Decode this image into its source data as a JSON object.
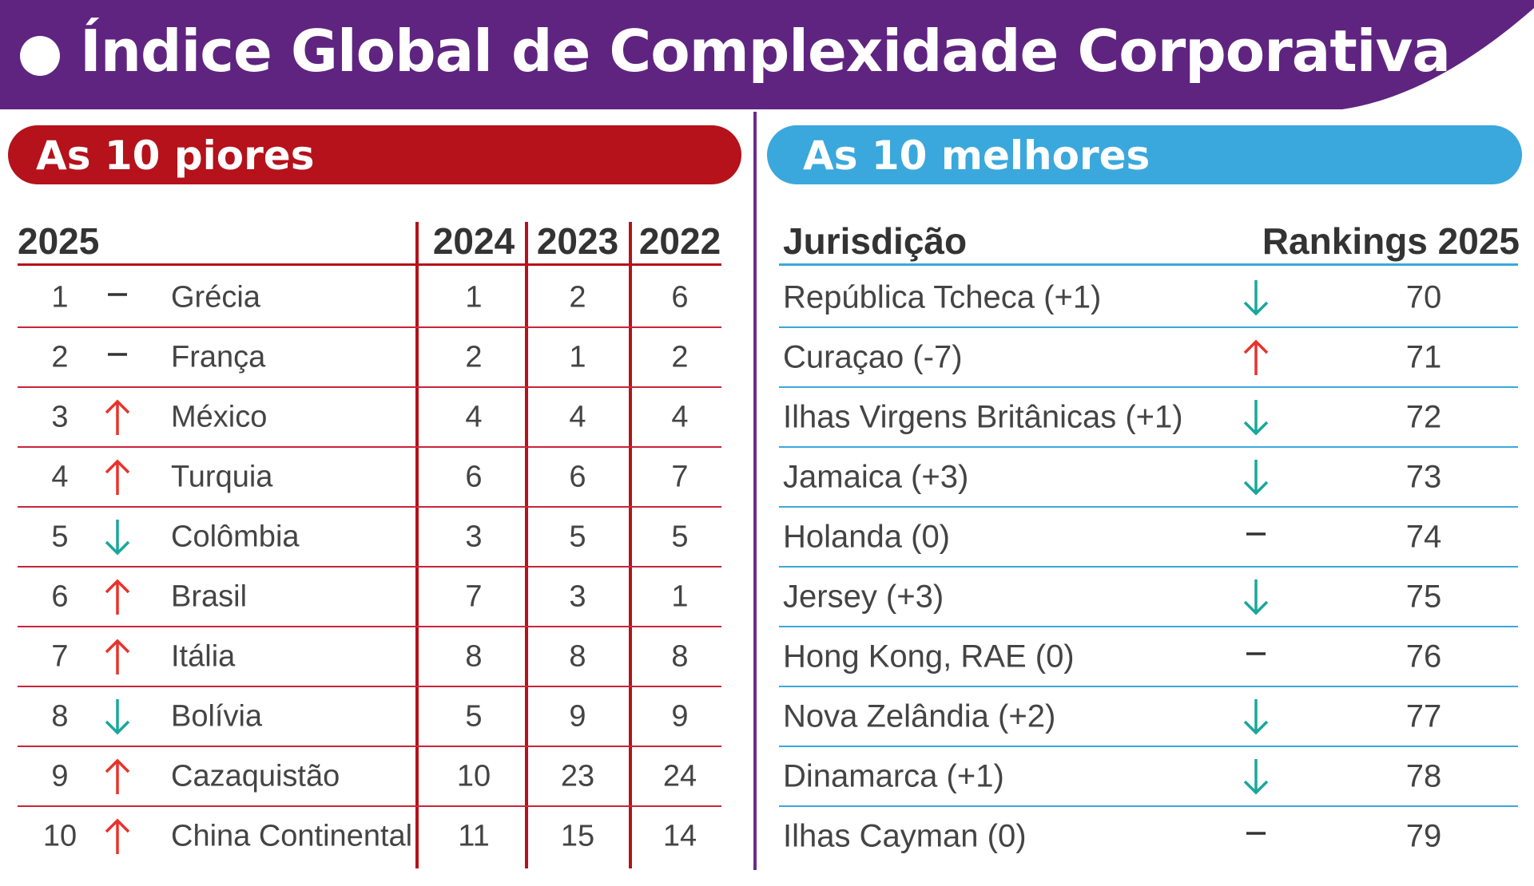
{
  "header": {
    "title": "Índice Global de Complexidade Corporativa"
  },
  "worst": {
    "title": "As 10 piores",
    "columns": [
      "2025",
      "2024",
      "2023",
      "2022"
    ],
    "rows": [
      {
        "rank": "1",
        "trend": "same",
        "country": "Grécia",
        "y2024": "1",
        "y2023": "2",
        "y2022": "6"
      },
      {
        "rank": "2",
        "trend": "same",
        "country": "França",
        "y2024": "2",
        "y2023": "1",
        "y2022": "2"
      },
      {
        "rank": "3",
        "trend": "up",
        "country": "México",
        "y2024": "4",
        "y2023": "4",
        "y2022": "4"
      },
      {
        "rank": "4",
        "trend": "up",
        "country": "Turquia",
        "y2024": "6",
        "y2023": "6",
        "y2022": "7"
      },
      {
        "rank": "5",
        "trend": "down",
        "country": "Colômbia",
        "y2024": "3",
        "y2023": "5",
        "y2022": "5"
      },
      {
        "rank": "6",
        "trend": "up",
        "country": "Brasil",
        "y2024": "7",
        "y2023": "3",
        "y2022": "1"
      },
      {
        "rank": "7",
        "trend": "up",
        "country": "Itália",
        "y2024": "8",
        "y2023": "8",
        "y2022": "8"
      },
      {
        "rank": "8",
        "trend": "down",
        "country": "Bolívia",
        "y2024": "5",
        "y2023": "9",
        "y2022": "9"
      },
      {
        "rank": "9",
        "trend": "up",
        "country": "Cazaquistão",
        "y2024": "10",
        "y2023": "23",
        "y2022": "24"
      },
      {
        "rank": "10",
        "trend": "up",
        "country": "China Continental",
        "y2024": "11",
        "y2023": "15",
        "y2022": "14"
      }
    ]
  },
  "best": {
    "title": "As 10 melhores",
    "columns": [
      "Jurisdição",
      "Rankings 2025"
    ],
    "rows": [
      {
        "name": "República Tcheca (+1)",
        "trend": "down",
        "rank": "70"
      },
      {
        "name": "Curaçao (-7)",
        "trend": "up",
        "rank": "71"
      },
      {
        "name": "Ilhas Virgens Britânicas (+1)",
        "trend": "down",
        "rank": "72"
      },
      {
        "name": "Jamaica (+3)",
        "trend": "down",
        "rank": "73"
      },
      {
        "name": "Holanda (0)",
        "trend": "same",
        "rank": "74"
      },
      {
        "name": "Jersey (+3)",
        "trend": "down",
        "rank": "75"
      },
      {
        "name": "Hong Kong, RAE (0)",
        "trend": "same",
        "rank": "76"
      },
      {
        "name": "Nova Zelândia (+2)",
        "trend": "down",
        "rank": "77"
      },
      {
        "name": "Dinamarca (+1)",
        "trend": "down",
        "rank": "78"
      },
      {
        "name": "Ilhas Cayman (0)",
        "trend": "same",
        "rank": "79"
      }
    ]
  }
}
